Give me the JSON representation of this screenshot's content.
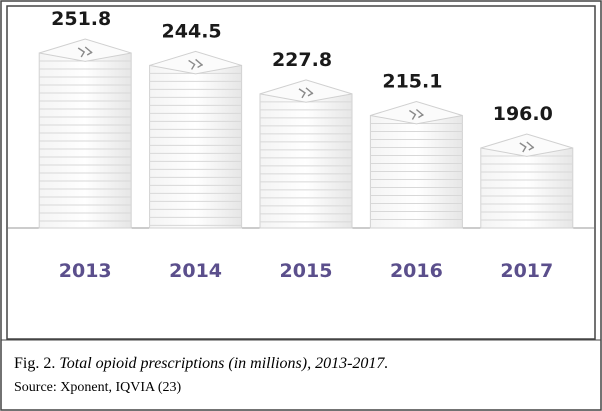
{
  "chart_data": {
    "type": "pictograph-bar",
    "caption_label": "Fig. 2.",
    "title": "Total opioid prescriptions (in millions), 2013-2017.",
    "source": "Source: Xponent, IQVIA (23)",
    "categories": [
      "2013",
      "2014",
      "2015",
      "2016",
      "2017"
    ],
    "values": [
      251.8,
      244.5,
      227.8,
      215.1,
      196.0
    ],
    "value_labels": [
      "251.8",
      "244.5",
      "227.8",
      "215.1",
      "196.0"
    ],
    "label_color": "#5b4f8c"
  }
}
